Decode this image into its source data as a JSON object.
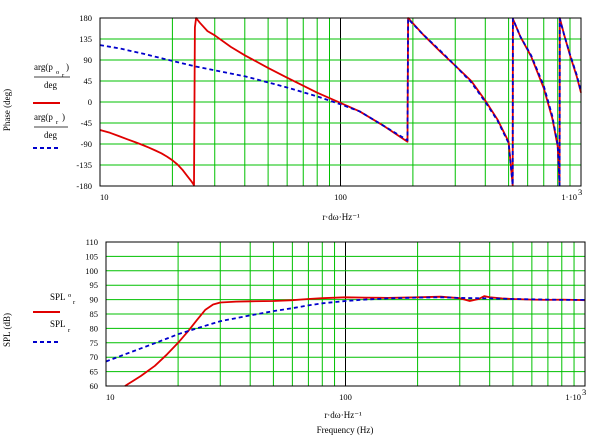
{
  "colors": {
    "series_red": "#e00000",
    "series_blue": "#0000cc",
    "grid": "#00c000",
    "frame": "#000000"
  },
  "chart_data": [
    {
      "type": "line",
      "xscale": "log",
      "xlim": [
        10,
        1000
      ],
      "ylim": [
        -180,
        180
      ],
      "ylabel": "Phase (deg)",
      "xlabel": "r·dω·Hz⁻¹",
      "x_tick_labels": [
        "10",
        "100",
        "1·10"
      ],
      "x_tick_superscript": "3",
      "y_ticks": [
        -180,
        -135,
        -90,
        -45,
        0,
        45,
        90,
        135,
        180
      ],
      "y_tick_labels": [
        "-180",
        "-135",
        "-90",
        "-45",
        "0",
        "45",
        "90",
        "135",
        "180"
      ],
      "grid": true,
      "legend": [
        {
          "expr": "arg(p_or)",
          "denom": "deg",
          "color": "red",
          "style": "solid"
        },
        {
          "expr": "arg(p_r)",
          "denom": "deg",
          "color": "blue",
          "style": "dashed"
        }
      ],
      "series": [
        {
          "color_key": "series_red",
          "dash": false,
          "x": [
            10,
            11,
            12,
            13,
            14,
            15,
            16,
            17,
            18,
            19,
            20,
            21,
            22,
            23,
            24,
            24.6,
            24.8,
            25.1,
            26,
            28,
            30,
            35,
            40,
            50,
            60,
            70,
            80,
            100,
            120,
            150,
            190,
            191,
            220,
            260,
            300,
            350,
            400,
            450,
            500,
            520,
            521,
            560,
            620,
            700,
            760,
            800,
            815,
            816,
            850,
            900,
            960,
            1000
          ],
          "y": [
            -60,
            -66,
            -73,
            -80,
            -86,
            -92,
            -98,
            -104,
            -110,
            -117,
            -125,
            -134,
            -145,
            -158,
            -170,
            -178,
            160,
            180,
            170,
            152,
            143,
            118,
            100,
            73,
            52,
            35,
            20,
            -2,
            -20,
            -50,
            -85,
            180,
            145,
            108,
            78,
            45,
            3,
            -38,
            -85,
            -179,
            178,
            140,
            98,
            30,
            -35,
            -95,
            -179,
            180,
            145,
            100,
            55,
            20
          ]
        },
        {
          "color_key": "series_blue",
          "dash": true,
          "x": [
            10,
            12,
            15,
            20,
            25,
            30,
            40,
            50,
            60,
            80,
            100,
            120,
            150,
            190,
            191,
            220,
            260,
            300,
            350,
            400,
            450,
            500,
            520,
            521,
            560,
            620,
            700,
            760,
            800,
            815,
            816,
            850,
            900,
            960,
            1000
          ],
          "y": [
            122,
            115,
            104,
            88,
            76,
            68,
            55,
            42,
            31,
            12,
            -5,
            -20,
            -50,
            -82,
            178,
            145,
            110,
            78,
            42,
            0,
            -40,
            -88,
            -178,
            178,
            140,
            100,
            35,
            -30,
            -92,
            -178,
            178,
            145,
            102,
            58,
            22
          ]
        }
      ]
    },
    {
      "type": "line",
      "xscale": "log",
      "xlim": [
        10,
        1000
      ],
      "ylim": [
        60,
        110
      ],
      "ylabel": "SPL (dB)",
      "xlabel": "r·dω·Hz⁻¹",
      "xlabel2": "Frequency (Hz)",
      "x_tick_labels": [
        "10",
        "100",
        "1·10"
      ],
      "x_tick_superscript": "3",
      "y_ticks": [
        60,
        65,
        70,
        75,
        80,
        85,
        90,
        95,
        100,
        105,
        110
      ],
      "y_tick_labels": [
        "60",
        "65",
        "70",
        "75",
        "80",
        "85",
        "90",
        "95",
        "100",
        "105",
        "110"
      ],
      "grid": true,
      "legend": [
        {
          "expr": "SPL_or",
          "color": "red",
          "style": "solid"
        },
        {
          "expr": "SPL_r",
          "color": "blue",
          "style": "dashed"
        }
      ],
      "series": [
        {
          "color_key": "series_red",
          "dash": false,
          "x": [
            12,
            14,
            16,
            18,
            20,
            22,
            24,
            26,
            28,
            30,
            35,
            40,
            50,
            60,
            70,
            80,
            100,
            120,
            150,
            200,
            250,
            300,
            330,
            360,
            380,
            400,
            450,
            500,
            600,
            700,
            800,
            900,
            1000
          ],
          "y": [
            60,
            63.5,
            67,
            71,
            75,
            79,
            83,
            86.5,
            88.3,
            89,
            89.3,
            89.4,
            89.5,
            89.8,
            90.2,
            90.5,
            90.8,
            90.7,
            90.6,
            90.8,
            91.0,
            90.5,
            89.5,
            90.2,
            91.2,
            90.8,
            90.4,
            90.2,
            90.0,
            89.9,
            90.0,
            89.9,
            89.8
          ]
        },
        {
          "color_key": "series_blue",
          "dash": true,
          "x": [
            10,
            12,
            15,
            18,
            20,
            25,
            30,
            40,
            50,
            60,
            70,
            80,
            100,
            120,
            150,
            200,
            250,
            300,
            350,
            400,
            450,
            500,
            600,
            700,
            800,
            900,
            1000
          ],
          "y": [
            68.5,
            71,
            74,
            76.5,
            78,
            80.5,
            82.5,
            84.5,
            86,
            87,
            88,
            88.7,
            89.5,
            90.0,
            90.4,
            90.7,
            90.8,
            90.6,
            90.5,
            90.4,
            90.3,
            90.2,
            90.1,
            90.0,
            89.9,
            89.9,
            89.9
          ]
        }
      ]
    }
  ]
}
